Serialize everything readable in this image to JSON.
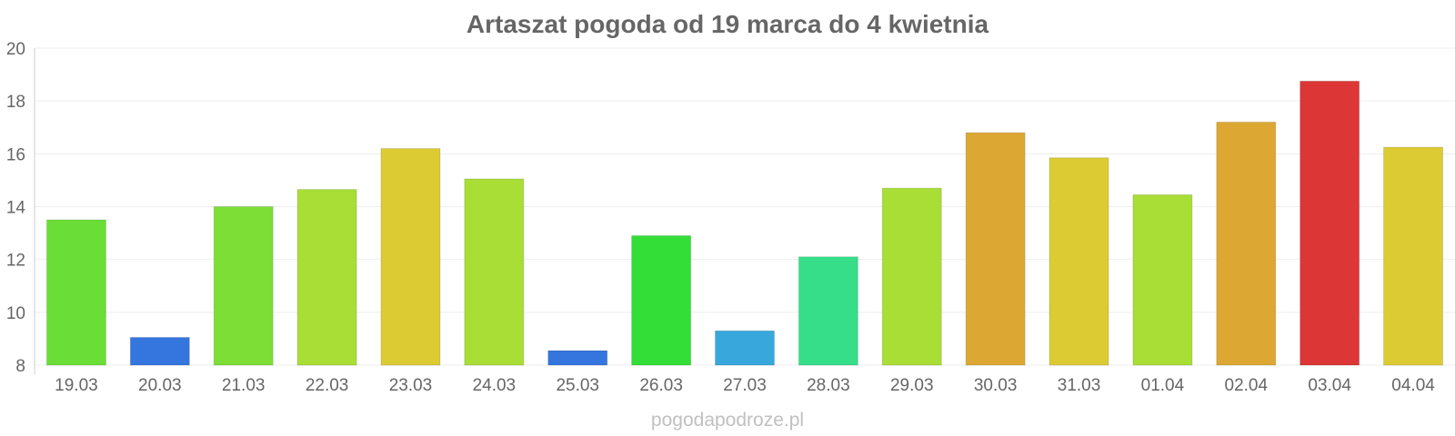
{
  "chart_data": {
    "type": "bar",
    "title": "Artaszat pogoda od 19 marca do 4 kwietnia",
    "xlabel": "",
    "ylabel": "",
    "categories": [
      "19.03",
      "20.03",
      "21.03",
      "22.03",
      "23.03",
      "24.03",
      "25.03",
      "26.03",
      "27.03",
      "28.03",
      "29.03",
      "30.03",
      "31.03",
      "01.04",
      "02.04",
      "03.04",
      "04.04"
    ],
    "values": [
      13.5,
      9.05,
      14.0,
      14.65,
      16.2,
      15.05,
      8.55,
      12.9,
      9.3,
      12.1,
      14.7,
      16.8,
      15.85,
      14.45,
      17.2,
      18.75,
      16.25
    ],
    "bar_colors": [
      "#6ade36",
      "#3575de",
      "#7dde36",
      "#a8de36",
      "#dccb33",
      "#a8de36",
      "#3575de",
      "#33de36",
      "#38a8dc",
      "#36de8a",
      "#a8de36",
      "#dca833",
      "#dccb33",
      "#a8de36",
      "#dca833",
      "#dc3636",
      "#dccb33"
    ],
    "ylim": [
      8,
      20
    ],
    "yticks": [
      8,
      10,
      12,
      14,
      16,
      18,
      20
    ],
    "grid": true,
    "legend": "none"
  },
  "watermark": "pogodapodroze.pl",
  "colors": {
    "title": "#666666",
    "tick_label": "#666666",
    "gridline": "#eeeeee",
    "axis": "#cccccc",
    "watermark": "#c0c0c0"
  }
}
